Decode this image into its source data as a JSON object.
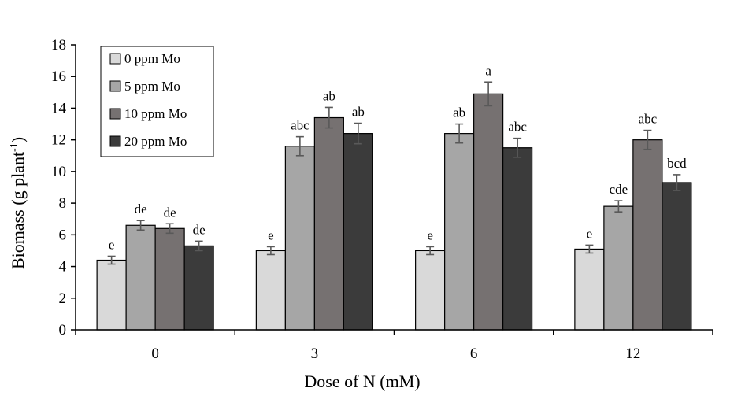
{
  "chart_data": {
    "type": "bar",
    "title": "",
    "xlabel": "Dose of N (mM)",
    "ylabel": {
      "main": "Biomass (g plant",
      "superscript": "-1",
      "close": ")"
    },
    "ylim": [
      0,
      18
    ],
    "yticks": [
      "0",
      "2",
      "4",
      "6",
      "8",
      "10",
      "12",
      "14",
      "16",
      "18"
    ],
    "categories": [
      "0",
      "3",
      "6",
      "12"
    ],
    "legend_position": "top-left",
    "series": [
      {
        "name": "0 ppm Mo",
        "color": "#d9d9d9",
        "values": [
          4.4,
          5.0,
          5.0,
          5.1
        ],
        "errors": [
          0.25,
          0.25,
          0.25,
          0.25
        ],
        "letters": [
          "e",
          "e",
          "e",
          "e"
        ]
      },
      {
        "name": "5 ppm Mo",
        "color": "#a6a6a6",
        "values": [
          6.6,
          11.6,
          12.4,
          7.8
        ],
        "errors": [
          0.3,
          0.6,
          0.6,
          0.35
        ],
        "letters": [
          "de",
          "abc",
          "ab",
          "cde"
        ]
      },
      {
        "name": "10 ppm Mo",
        "color": "#767171",
        "values": [
          6.4,
          13.4,
          14.9,
          12.0
        ],
        "errors": [
          0.3,
          0.65,
          0.75,
          0.6
        ],
        "letters": [
          "de",
          "ab",
          "a",
          "abc"
        ]
      },
      {
        "name": "20 ppm Mo",
        "color": "#3b3b3b",
        "values": [
          5.3,
          12.4,
          11.5,
          9.3
        ],
        "errors": [
          0.3,
          0.65,
          0.6,
          0.5
        ],
        "letters": [
          "de",
          "ab",
          "abc",
          "bcd"
        ]
      }
    ]
  }
}
